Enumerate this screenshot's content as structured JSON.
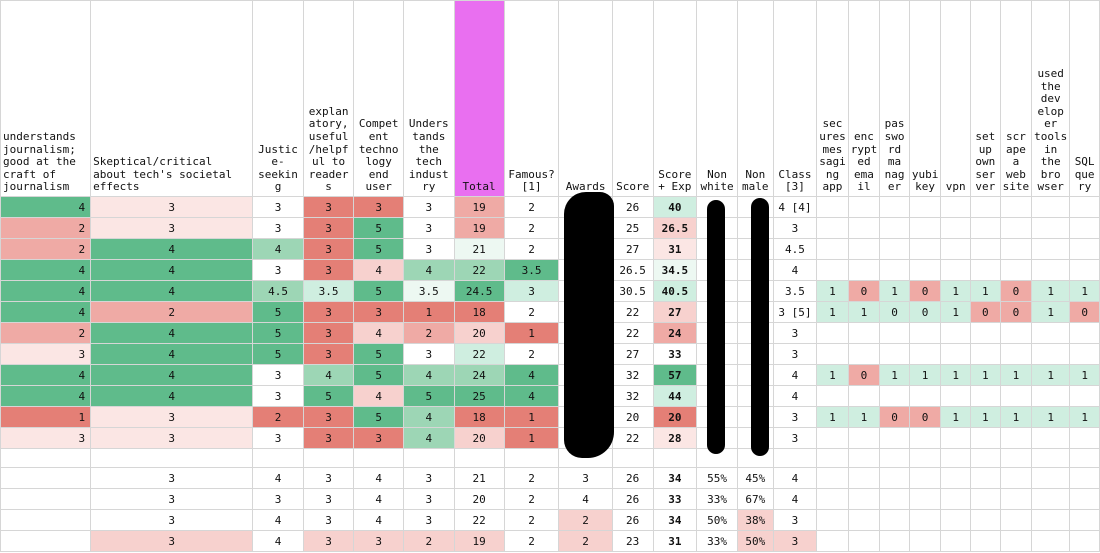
{
  "headers": [
    "understands journalism; good at the craft of journalism",
    "Skeptical/critical about tech's societal effects",
    "Justic e-seekin g",
    "explan atory, useful /helpf ul to reader s",
    "Compet ent techno logy end user",
    "Unders tands the tech indust ry",
    "Total",
    "Famous? [1]",
    "Awards",
    "Score",
    "Score + Exp",
    "Non white",
    "Non male",
    "Class [3]",
    "sec ures mes sagi ng app",
    "enc rypt ed ema il",
    "pas swo rd ma nag er",
    "yubi key",
    "vpn",
    "set up own ser ver",
    "scr ape a web site",
    "used the dev elop er tools in the bro wser",
    "SQL que ry"
  ],
  "rows": [
    {
      "cells": [
        "4",
        "3",
        "3",
        "3",
        "3",
        "3",
        "19",
        "2",
        "",
        "26",
        "40",
        "",
        "",
        "4 [4]",
        "",
        "",
        "",
        "",
        "",
        "",
        "",
        "",
        ""
      ],
      "colors": [
        "g3",
        "r0",
        "",
        "r3",
        "r3",
        "",
        "r2",
        "",
        "",
        "",
        "g1",
        "",
        "",
        "",
        "",
        "",
        "",
        "",
        "",
        "",
        "",
        "",
        ""
      ]
    },
    {
      "cells": [
        "2",
        "3",
        "3",
        "3",
        "5",
        "3",
        "19",
        "2",
        "",
        "25",
        "26.5",
        "",
        "",
        "3",
        "",
        "",
        "",
        "",
        "",
        "",
        "",
        "",
        ""
      ],
      "colors": [
        "r2",
        "r0",
        "",
        "r3",
        "g3",
        "",
        "r2",
        "",
        "",
        "",
        "r1",
        "",
        "",
        "",
        "",
        "",
        "",
        "",
        "",
        "",
        "",
        "",
        ""
      ]
    },
    {
      "cells": [
        "2",
        "4",
        "4",
        "3",
        "5",
        "3",
        "21",
        "2",
        "",
        "27",
        "31",
        "",
        "",
        "4.5",
        "",
        "",
        "",
        "",
        "",
        "",
        "",
        "",
        ""
      ],
      "colors": [
        "r2",
        "g3",
        "g2",
        "r3",
        "g3",
        "",
        "g0",
        "",
        "",
        "",
        "r0",
        "",
        "",
        "",
        "",
        "",
        "",
        "",
        "",
        "",
        "",
        "",
        ""
      ]
    },
    {
      "cells": [
        "4",
        "4",
        "3",
        "3",
        "4",
        "4",
        "22",
        "3.5",
        "",
        "26.5",
        "34.5",
        "",
        "",
        "4",
        "",
        "",
        "",
        "",
        "",
        "",
        "",
        "",
        ""
      ],
      "colors": [
        "g3",
        "g3",
        "",
        "r3",
        "r1",
        "g2",
        "g2",
        "g3",
        "",
        "",
        "g0",
        "",
        "",
        "",
        "",
        "",
        "",
        "",
        "",
        "",
        "",
        "",
        ""
      ]
    },
    {
      "cells": [
        "4",
        "4",
        "4.5",
        "3.5",
        "5",
        "3.5",
        "24.5",
        "3",
        "",
        "30.5",
        "40.5",
        "",
        "",
        "3.5",
        "1",
        "0",
        "1",
        "0",
        "1",
        "1",
        "0",
        "1",
        "1"
      ],
      "colors": [
        "g3",
        "g3",
        "g2",
        "g1",
        "g3",
        "g0",
        "g3",
        "g1",
        "",
        "",
        "g1",
        "",
        "",
        "",
        "g1",
        "r2",
        "g1",
        "r2",
        "g1",
        "g1",
        "r2",
        "g1",
        "g1"
      ]
    },
    {
      "cells": [
        "4",
        "2",
        "5",
        "3",
        "3",
        "1",
        "18",
        "2",
        "",
        "22",
        "27",
        "",
        "",
        "3 [5]",
        "1",
        "1",
        "0",
        "0",
        "1",
        "0",
        "0",
        "1",
        "0"
      ],
      "colors": [
        "g3",
        "r2",
        "g3",
        "r3",
        "r3",
        "r3",
        "r3",
        "",
        "",
        "",
        "r1",
        "",
        "",
        "",
        "g1",
        "g1",
        "g1",
        "g1",
        "g1",
        "r2",
        "r2",
        "g1",
        "r2"
      ]
    },
    {
      "cells": [
        "2",
        "4",
        "5",
        "3",
        "4",
        "2",
        "20",
        "1",
        "",
        "22",
        "24",
        "",
        "",
        "3",
        "",
        "",
        "",
        "",
        "",
        "",
        "",
        "",
        ""
      ],
      "colors": [
        "r2",
        "g3",
        "g3",
        "r3",
        "r1",
        "r2",
        "r1",
        "r3",
        "",
        "",
        "r2",
        "",
        "",
        "",
        "",
        "",
        "",
        "",
        "",
        "",
        "",
        "",
        ""
      ]
    },
    {
      "cells": [
        "3",
        "4",
        "5",
        "3",
        "5",
        "3",
        "22",
        "2",
        "",
        "27",
        "33",
        "",
        "",
        "3",
        "",
        "",
        "",
        "",
        "",
        "",
        "",
        "",
        ""
      ],
      "colors": [
        "r0",
        "g3",
        "g3",
        "r3",
        "g3",
        "",
        "g1",
        "",
        "",
        "",
        "",
        "",
        "",
        "",
        "",
        "",
        "",
        "",
        "",
        "",
        "",
        "",
        ""
      ]
    },
    {
      "cells": [
        "4",
        "4",
        "3",
        "4",
        "5",
        "4",
        "24",
        "4",
        "",
        "32",
        "57",
        "",
        "",
        "4",
        "1",
        "0",
        "1",
        "1",
        "1",
        "1",
        "1",
        "1",
        "1"
      ],
      "colors": [
        "g3",
        "g3",
        "",
        "g2",
        "g3",
        "g2",
        "g2",
        "g3",
        "",
        "",
        "g3",
        "",
        "",
        "",
        "g1",
        "r2",
        "g1",
        "g1",
        "g1",
        "g1",
        "g1",
        "g1",
        "g1"
      ]
    },
    {
      "cells": [
        "4",
        "4",
        "3",
        "5",
        "4",
        "5",
        "25",
        "4",
        "",
        "32",
        "44",
        "",
        "",
        "4",
        "",
        "",
        "",
        "",
        "",
        "",
        "",
        "",
        ""
      ],
      "colors": [
        "g3",
        "g3",
        "",
        "g3",
        "r1",
        "g3",
        "g3",
        "g3",
        "",
        "",
        "g1",
        "",
        "",
        "",
        "",
        "",
        "",
        "",
        "",
        "",
        "",
        "",
        ""
      ]
    },
    {
      "cells": [
        "1",
        "3",
        "2",
        "3",
        "5",
        "4",
        "18",
        "1",
        "",
        "20",
        "20",
        "",
        "",
        "3",
        "1",
        "1",
        "0",
        "0",
        "1",
        "1",
        "1",
        "1",
        "1"
      ],
      "colors": [
        "r3",
        "r0",
        "r3",
        "r3",
        "g3",
        "g2",
        "r3",
        "r3",
        "",
        "",
        "r3",
        "",
        "",
        "",
        "g1",
        "g1",
        "r2",
        "r2",
        "g1",
        "g1",
        "g1",
        "g1",
        "g1"
      ]
    },
    {
      "cells": [
        "3",
        "3",
        "3",
        "3",
        "3",
        "4",
        "20",
        "1",
        "",
        "22",
        "28",
        "",
        "",
        "3",
        "",
        "",
        "",
        "",
        "",
        "",
        "",
        "",
        ""
      ],
      "colors": [
        "r0",
        "r0",
        "",
        "r3",
        "r3",
        "g2",
        "r1",
        "r3",
        "",
        "",
        "r0",
        "",
        "",
        "",
        "",
        "",
        "",
        "",
        "",
        "",
        "",
        "",
        ""
      ]
    }
  ],
  "summary": [
    {
      "cells": [
        "",
        "3",
        "4",
        "3",
        "4",
        "3",
        "21",
        "2",
        "3",
        "26",
        "34",
        "55%",
        "45%",
        "4"
      ],
      "colors": [
        "",
        "",
        "",
        "",
        "",
        "",
        "",
        "",
        "",
        "",
        "",
        "",
        "",
        ""
      ]
    },
    {
      "cells": [
        "",
        "3",
        "3",
        "3",
        "4",
        "3",
        "20",
        "2",
        "4",
        "26",
        "33",
        "33%",
        "67%",
        "4"
      ],
      "colors": [
        "",
        "",
        "",
        "",
        "",
        "",
        "",
        "",
        "",
        "",
        "",
        "",
        "",
        ""
      ]
    },
    {
      "cells": [
        "",
        "3",
        "4",
        "3",
        "4",
        "3",
        "22",
        "2",
        "2",
        "26",
        "34",
        "50%",
        "38%",
        "3"
      ],
      "colors": [
        "",
        "",
        "",
        "",
        "",
        "",
        "",
        "",
        "r1",
        "",
        "",
        "",
        "r1",
        ""
      ]
    },
    {
      "cells": [
        "",
        "3",
        "4",
        "3",
        "3",
        "2",
        "19",
        "2",
        "2",
        "23",
        "31",
        "33%",
        "50%",
        "3"
      ],
      "colors": [
        "",
        "r1",
        "",
        "r1",
        "r1",
        "r1",
        "r1",
        "",
        "r1",
        "",
        "",
        "",
        "r1",
        "r1"
      ]
    }
  ]
}
